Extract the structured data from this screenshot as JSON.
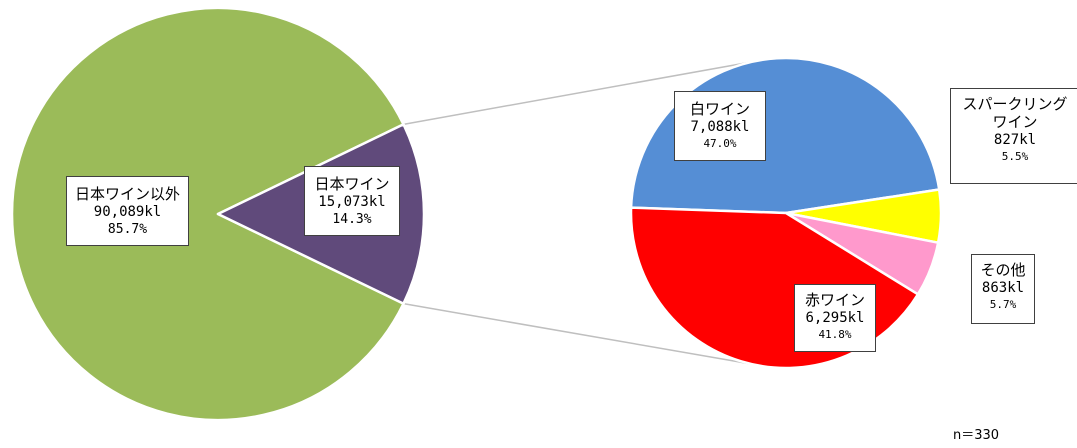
{
  "chart_data": [
    {
      "type": "pie",
      "slices": [
        {
          "label": "日本ワイン以外",
          "value": 90089,
          "value_text": "90,089kl",
          "percent_text": "85.7%",
          "color": "#9bbb59"
        },
        {
          "label": "日本ワイン",
          "value": 15073,
          "value_text": "15,073kl",
          "percent_text": "14.3%",
          "color": "#604a7b"
        }
      ]
    },
    {
      "type": "pie",
      "slices": [
        {
          "label": "白ワイン",
          "value": 7088,
          "value_text": "7,088kl",
          "percent_text": "47.0%",
          "color": "#558ed5"
        },
        {
          "label": "スパークリングワイン",
          "label_lines": [
            "スパークリング",
            "ワイン"
          ],
          "value": 827,
          "value_text": "827kl",
          "percent_text": "5.5%",
          "color": "#ffff00"
        },
        {
          "label": "その他",
          "value": 863,
          "value_text": "863kl",
          "percent_text": "5.7%",
          "color": "#ff99cc"
        },
        {
          "label": "赤ワイン",
          "value": 6295,
          "value_text": "6,295kl",
          "percent_text": "41.8%",
          "color": "#ff0000"
        }
      ]
    }
  ],
  "note": "n＝330"
}
